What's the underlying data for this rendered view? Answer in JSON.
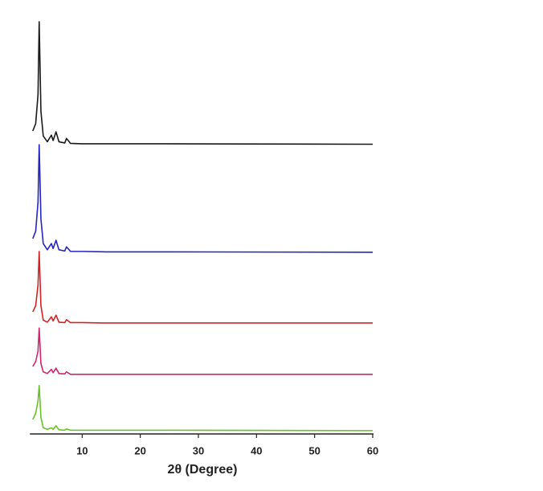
{
  "chart_data": {
    "type": "line",
    "x_label": "2θ (Degree)",
    "x": [
      1.5,
      2.0,
      2.4,
      2.6,
      2.9,
      3.3,
      4.0,
      4.7,
      5.0,
      5.5,
      6.0,
      7.0,
      7.3,
      8.0,
      10,
      14,
      25,
      60
    ],
    "xlim": [
      1,
      60
    ],
    "xticks": [
      10,
      20,
      30,
      40,
      50,
      60
    ],
    "ylim": [
      0,
      100
    ],
    "series": [
      {
        "color": "#1a1a1a",
        "values": [
          73.2,
          75,
          82,
          99.6,
          78,
          72,
          70.6,
          72.2,
          70.9,
          73,
          70.6,
          70.3,
          71.4,
          70.2,
          70.1,
          70.1,
          70.1,
          70
        ]
      },
      {
        "color": "#2424c4",
        "values": [
          47.2,
          49,
          56,
          69.9,
          52,
          46,
          44.5,
          46,
          44.8,
          46.8,
          44.5,
          44.2,
          45.2,
          44.1,
          44.1,
          44,
          44,
          43.9
        ]
      },
      {
        "color": "#d42222",
        "values": [
          29.5,
          31,
          36,
          44.1,
          31,
          27.5,
          27,
          28.3,
          27.3,
          28.7,
          27,
          26.9,
          27.6,
          26.9,
          26.9,
          26.8,
          26.8,
          26.8
        ]
      },
      {
        "color": "#d0246c",
        "values": [
          16.3,
          17.5,
          20,
          25.6,
          17,
          15,
          14.6,
          15.6,
          14.8,
          15.9,
          14.6,
          14.5,
          15,
          14.4,
          14.4,
          14.4,
          14.4,
          14.4
        ]
      },
      {
        "color": "#66c424",
        "values": [
          3.5,
          5,
          8,
          11.7,
          4,
          1.5,
          1.1,
          1.5,
          1.1,
          2,
          1,
          0.9,
          1.2,
          0.9,
          0.9,
          0.9,
          0.9,
          0.8
        ]
      }
    ]
  }
}
